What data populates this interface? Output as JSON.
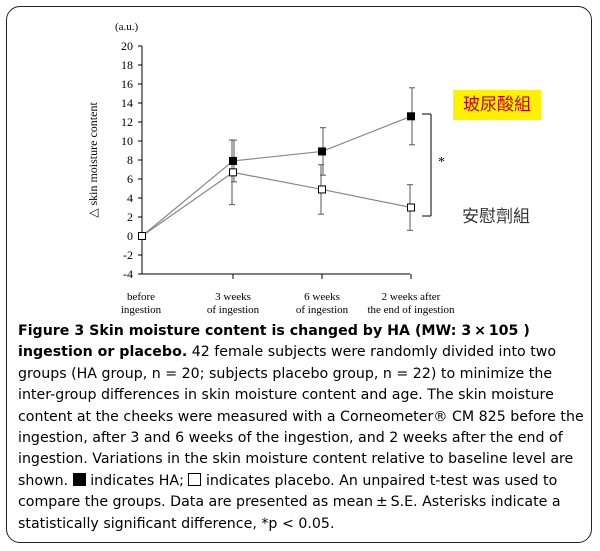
{
  "chart_data": {
    "type": "line",
    "yunit": "(a.u.)",
    "ylabel": "△ skin moisture content",
    "ylim": [
      -4,
      20
    ],
    "yticks": [
      -4,
      -2,
      0,
      2,
      4,
      6,
      8,
      10,
      12,
      14,
      16,
      18,
      20
    ],
    "categories": [
      [
        "before",
        "ingestion"
      ],
      [
        "3 weeks",
        "of ingestion"
      ],
      [
        "6 weeks",
        "of ingestion"
      ],
      [
        "2 weeks after",
        "the end of ingestion"
      ]
    ],
    "series": [
      {
        "name": "玻尿酸組",
        "marker": "filled-square",
        "values": [
          0,
          7.9,
          8.9,
          12.6
        ],
        "errors": [
          0,
          2.2,
          2.5,
          3.0
        ]
      },
      {
        "name": "安慰劑組",
        "marker": "open-square",
        "values": [
          0,
          6.7,
          4.9,
          3.0
        ],
        "errors": [
          0,
          3.4,
          2.6,
          2.4
        ]
      }
    ],
    "annotation": "*",
    "colors": {
      "ha_label_bg": "#fff200",
      "ha_label_text": "#c00000",
      "line": "#888888"
    }
  },
  "caption": {
    "title": "Figure 3 Skin moisture content is changed by HA (MW: 3 × 105 ) ingestion or placebo.",
    "body_1": " 42 female subjects were randomly divided into two groups (HA group, n = 20; subjects placebo group, n = 22) to minimize the inter-group differences in skin moisture content and age. The skin moisture content at the cheeks were measured with a Corneometer® CM 825 before the ingestion, after 3 and 6 weeks of the ingestion, and 2 weeks after the end of ingestion. Variations in the skin moisture content relative to baseline level are shown. ",
    "body_2": " indicates HA; ",
    "body_3": " indicates placebo. An unpaired t-test was used to compare the groups. Data are presented as mean ± S.E. Asterisks indicate a statistically significant difference, *p < 0.05."
  }
}
